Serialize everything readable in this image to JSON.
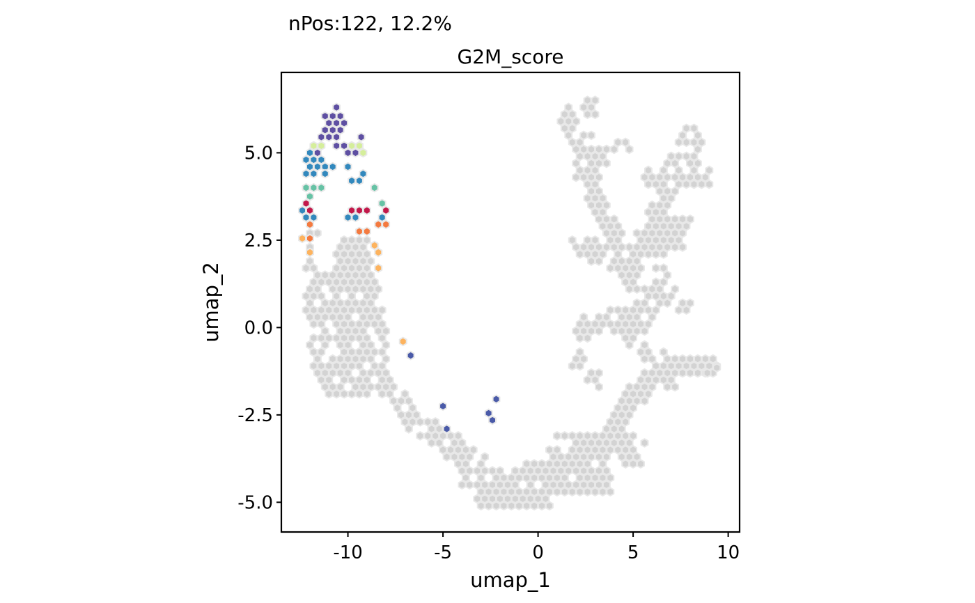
{
  "chart_data": {
    "type": "hexbin",
    "subtitle": "nPos:122, 12.2%",
    "title": "G2M_score",
    "xlabel": "umap_1",
    "ylabel": "umap_2",
    "xlim": [
      -13.5,
      10.6
    ],
    "ylim": [
      -5.85,
      7.3
    ],
    "x_ticks": [
      -10,
      -5,
      0,
      5,
      10
    ],
    "x_tick_labels": [
      "-10",
      "-5",
      "0",
      "5",
      "10"
    ],
    "y_ticks": [
      -5,
      -2.5,
      0,
      2.5,
      5
    ],
    "y_tick_labels": [
      "-5.0",
      "-2.5",
      "0.0",
      "2.5",
      "5.0"
    ],
    "grid": false,
    "legend": "none",
    "hex_size": 0.2,
    "background_color": "#d3d3d3",
    "background_edge_color": "#e8e8e8",
    "colors": {
      "violet": "#5e4fa2",
      "blue": "#3288bd",
      "indigo": "#4a5aa8",
      "teal": "#66c2a5",
      "lime": "#d5ee9b",
      "red": "#c2184a",
      "orange": "#f47a3f",
      "yellow": "#fdb35e"
    },
    "positive_bins": [
      [
        -10.6,
        6.3,
        "violet"
      ],
      [
        -10.8,
        6.05,
        "violet"
      ],
      [
        -10.4,
        6.05,
        "violet"
      ],
      [
        -11.2,
        6.05,
        "violet"
      ],
      [
        -11.0,
        5.85,
        "violet"
      ],
      [
        -10.6,
        5.85,
        "violet"
      ],
      [
        -10.2,
        5.85,
        "violet"
      ],
      [
        -11.2,
        5.65,
        "violet"
      ],
      [
        -10.8,
        5.65,
        "violet"
      ],
      [
        -10.4,
        5.65,
        "violet"
      ],
      [
        -11.4,
        5.45,
        "violet"
      ],
      [
        -11.0,
        5.45,
        "violet"
      ],
      [
        -10.6,
        5.45,
        "violet"
      ],
      [
        -9.3,
        5.45,
        "violet"
      ],
      [
        -10.2,
        5.2,
        "violet"
      ],
      [
        -11.8,
        5.2,
        "lime"
      ],
      [
        -11.4,
        5.2,
        "lime"
      ],
      [
        -10.6,
        5.2,
        "violet"
      ],
      [
        -9.8,
        5.2,
        "lime"
      ],
      [
        -9.4,
        5.2,
        "lime"
      ],
      [
        -9.2,
        5.0,
        "lime"
      ],
      [
        -12.0,
        5.0,
        "blue"
      ],
      [
        -11.6,
        5.0,
        "violet"
      ],
      [
        -10.0,
        5.0,
        "violet"
      ],
      [
        -9.6,
        5.0,
        "violet"
      ],
      [
        -12.2,
        4.8,
        "blue"
      ],
      [
        -11.8,
        4.8,
        "blue"
      ],
      [
        -11.4,
        4.8,
        "blue"
      ],
      [
        -12.0,
        4.6,
        "blue"
      ],
      [
        -11.6,
        4.6,
        "blue"
      ],
      [
        -11.2,
        4.6,
        "blue"
      ],
      [
        -10.8,
        4.6,
        "blue"
      ],
      [
        -10.0,
        4.6,
        "blue"
      ],
      [
        -12.2,
        4.4,
        "blue"
      ],
      [
        -11.8,
        4.4,
        "blue"
      ],
      [
        -11.2,
        4.4,
        "blue"
      ],
      [
        -9.2,
        4.4,
        "blue"
      ],
      [
        -9.8,
        4.2,
        "blue"
      ],
      [
        -9.4,
        4.2,
        "blue"
      ],
      [
        -12.2,
        4.0,
        "teal"
      ],
      [
        -11.8,
        4.0,
        "teal"
      ],
      [
        -11.4,
        4.0,
        "teal"
      ],
      [
        -8.6,
        4.0,
        "teal"
      ],
      [
        -12.0,
        3.75,
        "teal"
      ],
      [
        -8.2,
        3.55,
        "teal"
      ],
      [
        -12.2,
        3.55,
        "red"
      ],
      [
        -12.4,
        3.35,
        "blue"
      ],
      [
        -12.0,
        3.35,
        "red"
      ],
      [
        -9.8,
        3.35,
        "red"
      ],
      [
        -9.4,
        3.35,
        "red"
      ],
      [
        -9.0,
        3.35,
        "red"
      ],
      [
        -8.0,
        3.35,
        "red"
      ],
      [
        -12.2,
        3.15,
        "blue"
      ],
      [
        -11.8,
        3.15,
        "blue"
      ],
      [
        -10.0,
        3.15,
        "blue"
      ],
      [
        -9.6,
        3.15,
        "blue"
      ],
      [
        -8.2,
        3.15,
        "blue"
      ],
      [
        -12.0,
        2.95,
        "orange"
      ],
      [
        -8.4,
        2.95,
        "orange"
      ],
      [
        -8.0,
        2.95,
        "orange"
      ],
      [
        -9.4,
        2.75,
        "orange"
      ],
      [
        -9.0,
        2.75,
        "orange"
      ],
      [
        -12.4,
        2.55,
        "yellow"
      ],
      [
        -12.0,
        2.55,
        "orange"
      ],
      [
        -8.6,
        2.35,
        "yellow"
      ],
      [
        -12.0,
        2.15,
        "yellow"
      ],
      [
        -8.4,
        2.15,
        "yellow"
      ],
      [
        -8.4,
        1.7,
        "yellow"
      ],
      [
        -7.1,
        -0.4,
        "yellow"
      ],
      [
        -6.7,
        -0.8,
        "indigo"
      ],
      [
        -5.0,
        -2.25,
        "indigo"
      ],
      [
        -4.8,
        -2.9,
        "indigo"
      ],
      [
        -2.2,
        -2.05,
        "indigo"
      ],
      [
        -2.6,
        -2.45,
        "indigo"
      ],
      [
        -2.4,
        -2.65,
        "indigo"
      ]
    ]
  }
}
